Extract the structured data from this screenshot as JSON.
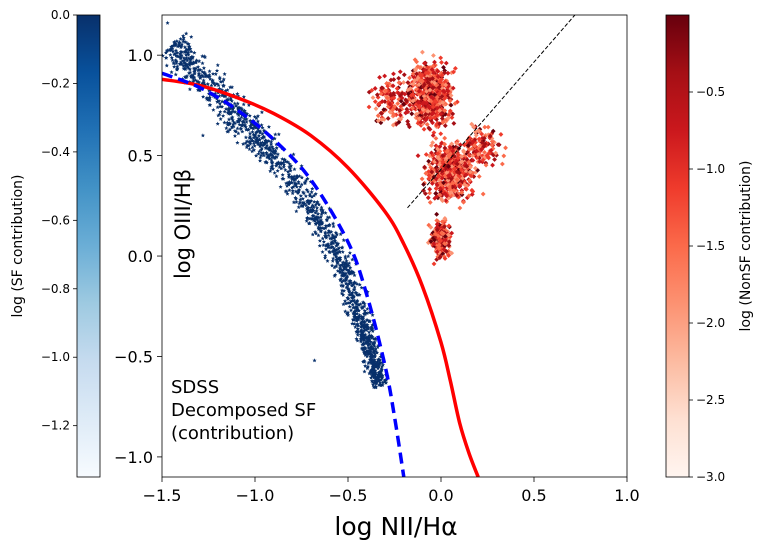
{
  "chart_data": {
    "type": "scatter",
    "xlabel": "log NII/Hα",
    "ylabel": "log OIII/Hβ",
    "xlim": [
      -1.5,
      1.0
    ],
    "ylim": [
      -1.1,
      1.2
    ],
    "xticks": [
      -1.5,
      -1.0,
      -0.5,
      0.0,
      0.5,
      1.0
    ],
    "xtick_labels": [
      "−1.5",
      "−1.0",
      "−0.5",
      "0.0",
      "0.5",
      "1.0"
    ],
    "yticks": [
      -1.0,
      -0.5,
      0.0,
      0.5,
      1.0
    ],
    "ytick_labels": [
      "−1.0",
      "−0.5",
      "0.0",
      "0.5",
      "1.0"
    ],
    "annotation": [
      "SDSS",
      "Decomposed SF",
      "(contribution)"
    ],
    "grid": false,
    "series": [
      {
        "kind": "scatter-density",
        "color": "#08306b",
        "marker": "star",
        "ridge": [
          [
            -1.45,
            1.05
          ],
          [
            -1.3,
            0.9
          ],
          [
            -1.1,
            0.7
          ],
          [
            -0.9,
            0.5
          ],
          [
            -0.7,
            0.25
          ],
          [
            -0.55,
            0.0
          ],
          [
            -0.45,
            -0.25
          ],
          [
            -0.38,
            -0.45
          ],
          [
            -0.33,
            -0.65
          ]
        ]
      },
      {
        "kind": "scatter-density",
        "color": "#cb181d",
        "marker": "diamond",
        "region_x": [
          -0.5,
          0.4
        ],
        "region_y": [
          -0.1,
          1.1
        ]
      },
      {
        "kind": "curve",
        "color": "#ff0000",
        "style": "solid",
        "points": [
          [
            -1.5,
            0.88
          ],
          [
            -1.3,
            0.85
          ],
          [
            -1.1,
            0.79
          ],
          [
            -0.9,
            0.71
          ],
          [
            -0.7,
            0.6
          ],
          [
            -0.5,
            0.44
          ],
          [
            -0.3,
            0.22
          ],
          [
            -0.2,
            0.06
          ],
          [
            -0.1,
            -0.15
          ],
          [
            0.0,
            -0.43
          ],
          [
            0.05,
            -0.62
          ],
          [
            0.1,
            -0.83
          ],
          [
            0.15,
            -0.98
          ],
          [
            0.2,
            -1.1
          ]
        ]
      },
      {
        "kind": "curve",
        "color": "#0000ff",
        "style": "dashed",
        "points": [
          [
            -1.5,
            0.91
          ],
          [
            -1.3,
            0.84
          ],
          [
            -1.1,
            0.73
          ],
          [
            -0.9,
            0.58
          ],
          [
            -0.7,
            0.38
          ],
          [
            -0.5,
            0.07
          ],
          [
            -0.4,
            -0.19
          ],
          [
            -0.3,
            -0.55
          ],
          [
            -0.25,
            -0.8
          ],
          [
            -0.2,
            -1.1
          ]
        ]
      },
      {
        "kind": "curve",
        "color": "#000000",
        "style": "dashed-thin",
        "points": [
          [
            -0.18,
            0.24
          ],
          [
            0.72,
            1.2
          ]
        ]
      }
    ],
    "colorbars": [
      {
        "label": "log (SF contribution)",
        "colormap": "Blues",
        "range": [
          -1.35,
          0.0
        ],
        "ticks": [
          0.0,
          -0.2,
          -0.4,
          -0.6,
          -0.8,
          -1.0,
          -1.2
        ],
        "tick_labels": [
          "0.0",
          "−0.2",
          "−0.4",
          "−0.6",
          "−0.8",
          "−1.0",
          "−1.2"
        ],
        "colors": [
          "#f7fbff",
          "#deebf7",
          "#c6dbef",
          "#9ecae1",
          "#6baed6",
          "#4292c6",
          "#2171b5",
          "#08519c",
          "#08306b"
        ]
      },
      {
        "label": "log (NonSF contribution)",
        "colormap": "Reds",
        "range": [
          -3.0,
          0.0
        ],
        "ticks": [
          -0.5,
          -1.0,
          -1.5,
          -2.0,
          -2.5,
          -3.0
        ],
        "tick_labels": [
          "−0.5",
          "−1.0",
          "−1.5",
          "−2.0",
          "−2.5",
          "−3.0"
        ],
        "colors": [
          "#fff5f0",
          "#fee0d2",
          "#fcbba1",
          "#fc9272",
          "#fb6a4a",
          "#ef3b2c",
          "#cb181d",
          "#a50f15",
          "#67000d"
        ]
      }
    ]
  }
}
